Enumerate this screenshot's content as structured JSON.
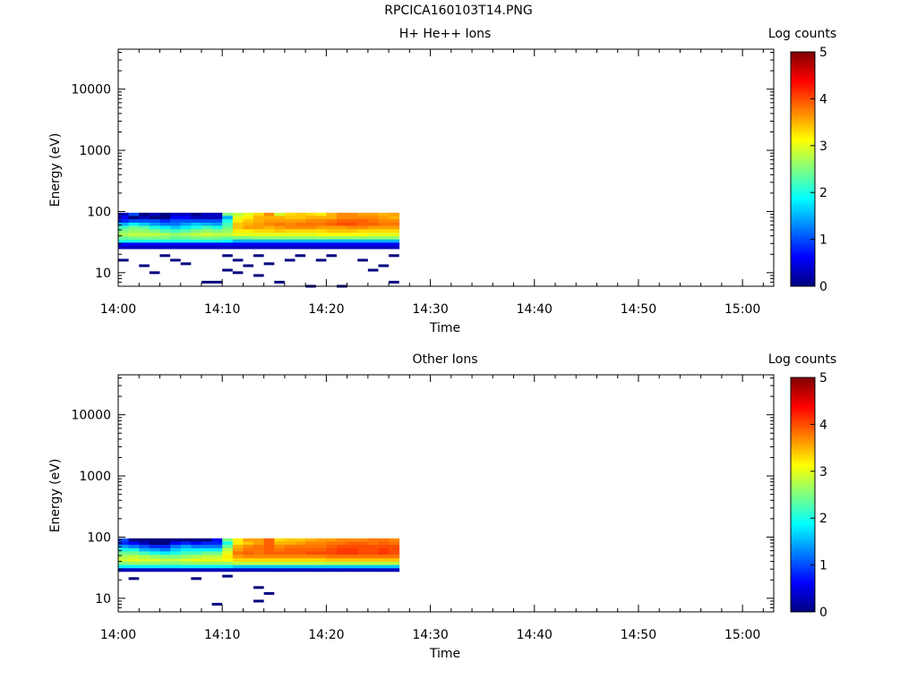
{
  "page_title": "RPCICA160103T14.PNG",
  "panels": [
    {
      "title": "H+ He++ Ions",
      "colorbar_label": "Log counts",
      "xlabel": "Time",
      "ylabel": "Energy (eV)"
    },
    {
      "title": "Other Ions",
      "colorbar_label": "Log counts",
      "xlabel": "Time",
      "ylabel": "Energy (eV)"
    }
  ],
  "colors": {
    "colormap": [
      "#00007f",
      "#0000ff",
      "#007fff",
      "#00ffff",
      "#7fff7f",
      "#ffff00",
      "#ff7f00",
      "#ff0000",
      "#7f0000"
    ]
  },
  "chart_data": [
    {
      "type": "heatmap",
      "title": "H+ He++ Ions",
      "xlabel": "Time",
      "ylabel": "Energy (eV)",
      "colorbar_label": "Log counts",
      "yscale": "log",
      "xlim": [
        "14:00",
        "15:03"
      ],
      "ylim": [
        6,
        45000
      ],
      "x_ticks": [
        "14:00",
        "14:10",
        "14:20",
        "14:30",
        "14:40",
        "14:50",
        "15:00"
      ],
      "y_ticks": [
        "10",
        "100",
        "1000",
        "10000"
      ],
      "color_ticks": [
        "0",
        "1",
        "2",
        "3",
        "4",
        "5"
      ],
      "clim": [
        0,
        5
      ],
      "time_bins": [
        "14:00",
        "14:01",
        "14:02",
        "14:03",
        "14:04",
        "14:05",
        "14:06",
        "14:07",
        "14:08",
        "14:09",
        "14:10",
        "14:11",
        "14:12",
        "14:13",
        "14:14",
        "14:15",
        "14:16",
        "14:17",
        "14:18",
        "14:19",
        "14:20",
        "14:21",
        "14:22",
        "14:23",
        "14:24",
        "14:25",
        "14:26"
      ],
      "energy_bins": [
        90,
        80,
        70,
        62,
        55,
        48,
        42,
        37,
        33,
        29,
        26
      ],
      "values": [
        [
          0.3,
          1.0,
          0.0,
          0.3,
          0.0,
          0.3,
          0.3,
          0.0,
          0.3,
          0.3,
          2.5,
          2.8,
          3.0,
          3.3,
          3.7,
          2.9,
          3.3,
          3.4,
          3.3,
          3.2,
          3.5,
          3.7,
          3.7,
          3.6,
          3.6,
          3.5,
          3.6
        ],
        [
          0.6,
          0.0,
          0.3,
          0.0,
          0.0,
          0.6,
          0.6,
          0.3,
          0.3,
          0.3,
          1.5,
          3.0,
          3.2,
          3.5,
          3.5,
          3.5,
          3.4,
          3.4,
          3.5,
          3.5,
          3.5,
          3.7,
          3.7,
          3.7,
          3.7,
          3.6,
          3.5
        ],
        [
          0.8,
          1.0,
          1.0,
          1.0,
          0.8,
          1.0,
          1.0,
          1.0,
          1.0,
          1.0,
          2.0,
          3.2,
          3.4,
          3.5,
          3.6,
          3.6,
          3.6,
          3.6,
          3.7,
          3.7,
          3.8,
          3.9,
          3.9,
          3.9,
          3.8,
          3.7,
          3.7
        ],
        [
          1.5,
          1.8,
          1.6,
          1.4,
          1.2,
          1.2,
          1.4,
          1.6,
          1.5,
          1.4,
          2.2,
          3.4,
          3.5,
          3.6,
          3.7,
          3.8,
          3.7,
          3.8,
          3.8,
          3.8,
          3.9,
          4.0,
          4.0,
          3.9,
          3.9,
          3.8,
          3.8
        ],
        [
          2.2,
          2.4,
          2.3,
          2.0,
          1.8,
          1.6,
          1.8,
          2.0,
          2.2,
          2.0,
          2.4,
          3.4,
          3.6,
          3.6,
          3.5,
          3.6,
          3.7,
          3.7,
          3.7,
          3.6,
          3.6,
          3.6,
          3.7,
          3.7,
          3.6,
          3.6,
          3.6
        ],
        [
          2.5,
          2.6,
          2.6,
          2.5,
          2.3,
          2.2,
          2.3,
          2.5,
          2.6,
          2.5,
          2.6,
          3.2,
          3.2,
          3.3,
          3.3,
          3.4,
          3.3,
          3.3,
          3.3,
          3.3,
          3.4,
          3.4,
          3.4,
          3.3,
          3.3,
          3.3,
          3.3
        ],
        [
          2.7,
          2.8,
          2.8,
          2.8,
          2.7,
          2.6,
          2.7,
          2.8,
          2.9,
          2.8,
          2.8,
          3.0,
          3.0,
          3.0,
          3.0,
          3.0,
          3.0,
          3.0,
          3.0,
          3.1,
          3.1,
          3.1,
          3.1,
          3.1,
          3.0,
          3.0,
          3.0
        ],
        [
          2.4,
          2.5,
          2.5,
          2.5,
          2.5,
          2.4,
          2.4,
          2.5,
          2.5,
          2.5,
          2.4,
          2.5,
          2.5,
          2.6,
          2.6,
          2.6,
          2.6,
          2.6,
          2.6,
          2.6,
          2.6,
          2.6,
          2.6,
          2.6,
          2.6,
          2.6,
          2.6
        ],
        [
          2.0,
          2.0,
          2.0,
          2.0,
          2.0,
          2.0,
          2.0,
          2.0,
          2.0,
          2.0,
          1.9,
          1.5,
          1.5,
          1.5,
          1.5,
          1.5,
          1.5,
          1.5,
          1.5,
          1.5,
          1.5,
          1.5,
          1.5,
          1.5,
          1.5,
          1.5,
          1.5
        ],
        [
          0.6,
          0.6,
          0.6,
          0.6,
          0.6,
          0.6,
          0.6,
          0.6,
          0.6,
          0.6,
          0.6,
          0.6,
          0.6,
          0.6,
          0.6,
          0.6,
          0.6,
          0.6,
          0.6,
          0.6,
          0.6,
          0.6,
          0.6,
          0.6,
          0.6,
          0.6,
          0.6
        ],
        [
          0.3,
          0.3,
          0.3,
          0.3,
          0.3,
          0.3,
          0.3,
          0.3,
          0.3,
          0.3,
          0.3,
          0.3,
          0.3,
          0.3,
          0.3,
          0.3,
          0.3,
          0.3,
          0.3,
          0.3,
          0.3,
          0.3,
          0.3,
          0.3,
          0.3,
          0.3,
          0.3
        ]
      ],
      "sparse_points": [
        {
          "time": "14:00",
          "energy": 16
        },
        {
          "time": "14:02",
          "energy": 13
        },
        {
          "time": "14:03",
          "energy": 10
        },
        {
          "time": "14:04",
          "energy": 19
        },
        {
          "time": "14:05",
          "energy": 16
        },
        {
          "time": "14:06",
          "energy": 14
        },
        {
          "time": "14:08",
          "energy": 7
        },
        {
          "time": "14:09",
          "energy": 7
        },
        {
          "time": "14:10",
          "energy": 19
        },
        {
          "time": "14:10",
          "energy": 11
        },
        {
          "time": "14:11",
          "energy": 16
        },
        {
          "time": "14:11",
          "energy": 10
        },
        {
          "time": "14:12",
          "energy": 13
        },
        {
          "time": "14:13",
          "energy": 19
        },
        {
          "time": "14:13",
          "energy": 9
        },
        {
          "time": "14:14",
          "energy": 14
        },
        {
          "time": "14:15",
          "energy": 7
        },
        {
          "time": "14:16",
          "energy": 16
        },
        {
          "time": "14:17",
          "energy": 19
        },
        {
          "time": "14:18",
          "energy": 6
        },
        {
          "time": "14:19",
          "energy": 16
        },
        {
          "time": "14:20",
          "energy": 19
        },
        {
          "time": "14:21",
          "energy": 6
        },
        {
          "time": "14:23",
          "energy": 16
        },
        {
          "time": "14:24",
          "energy": 11
        },
        {
          "time": "14:25",
          "energy": 13
        },
        {
          "time": "14:26",
          "energy": 19
        },
        {
          "time": "14:26",
          "energy": 7
        }
      ]
    },
    {
      "type": "heatmap",
      "title": "Other Ions",
      "xlabel": "Time",
      "ylabel": "Energy (eV)",
      "colorbar_label": "Log counts",
      "yscale": "log",
      "xlim": [
        "14:00",
        "15:03"
      ],
      "ylim": [
        6,
        45000
      ],
      "x_ticks": [
        "14:00",
        "14:10",
        "14:20",
        "14:30",
        "14:40",
        "14:50",
        "15:00"
      ],
      "y_ticks": [
        "10",
        "100",
        "1000",
        "10000"
      ],
      "color_ticks": [
        "0",
        "1",
        "2",
        "3",
        "4",
        "5"
      ],
      "clim": [
        0,
        5
      ],
      "time_bins": [
        "14:00",
        "14:01",
        "14:02",
        "14:03",
        "14:04",
        "14:05",
        "14:06",
        "14:07",
        "14:08",
        "14:09",
        "14:10",
        "14:11",
        "14:12",
        "14:13",
        "14:14",
        "14:15",
        "14:16",
        "14:17",
        "14:18",
        "14:19",
        "14:20",
        "14:21",
        "14:22",
        "14:23",
        "14:24",
        "14:25",
        "14:26"
      ],
      "energy_bins": [
        90,
        80,
        70,
        62,
        55,
        48,
        42,
        37,
        33,
        29,
        26
      ],
      "values": [
        [
          1.0,
          0.0,
          0.0,
          0.0,
          0.0,
          0.0,
          0.0,
          0.0,
          0.0,
          0.6,
          2.5,
          3.2,
          3.6,
          3.6,
          3.9,
          3.3,
          3.4,
          3.4,
          3.5,
          3.6,
          3.6,
          3.7,
          3.7,
          3.7,
          3.8,
          3.8,
          3.7
        ],
        [
          0.8,
          0.6,
          0.3,
          0.0,
          0.0,
          0.6,
          0.8,
          0.6,
          0.8,
          0.8,
          2.0,
          3.2,
          3.4,
          3.6,
          3.9,
          3.5,
          3.5,
          3.6,
          3.7,
          3.7,
          3.8,
          3.8,
          3.9,
          3.9,
          3.8,
          3.9,
          3.8
        ],
        [
          1.4,
          1.2,
          1.0,
          0.8,
          0.8,
          1.2,
          1.4,
          1.2,
          1.2,
          1.2,
          2.4,
          3.5,
          3.7,
          3.8,
          3.9,
          3.7,
          3.8,
          3.8,
          3.8,
          3.8,
          3.9,
          4.0,
          4.0,
          4.0,
          4.0,
          4.0,
          4.0
        ],
        [
          2.0,
          2.0,
          1.5,
          1.4,
          1.2,
          1.6,
          1.8,
          1.8,
          1.8,
          1.8,
          2.8,
          3.6,
          3.8,
          3.8,
          3.9,
          3.8,
          3.9,
          3.9,
          3.9,
          3.9,
          4.0,
          4.1,
          4.1,
          4.0,
          4.0,
          4.1,
          4.0
        ],
        [
          2.4,
          2.4,
          2.2,
          2.0,
          1.8,
          2.0,
          2.2,
          2.2,
          2.4,
          2.4,
          3.0,
          3.8,
          3.9,
          3.8,
          3.9,
          3.9,
          3.9,
          3.9,
          4.0,
          4.0,
          4.0,
          4.1,
          4.1,
          4.0,
          4.0,
          4.1,
          4.0
        ],
        [
          2.7,
          2.8,
          2.7,
          2.6,
          2.5,
          2.5,
          2.6,
          2.7,
          2.8,
          2.8,
          3.2,
          3.6,
          3.7,
          3.7,
          3.7,
          3.7,
          3.7,
          3.7,
          3.7,
          3.7,
          3.8,
          3.8,
          3.8,
          3.8,
          3.8,
          3.8,
          3.8
        ],
        [
          2.9,
          3.0,
          2.9,
          2.9,
          2.8,
          2.8,
          2.9,
          3.0,
          3.0,
          3.0,
          3.1,
          3.3,
          3.3,
          3.3,
          3.3,
          3.3,
          3.3,
          3.3,
          3.3,
          3.3,
          3.4,
          3.4,
          3.4,
          3.4,
          3.4,
          3.4,
          3.4
        ],
        [
          2.5,
          2.6,
          2.6,
          2.6,
          2.5,
          2.5,
          2.6,
          2.6,
          2.6,
          2.6,
          2.6,
          2.8,
          2.8,
          2.8,
          2.8,
          2.8,
          2.8,
          2.8,
          2.8,
          2.8,
          2.8,
          2.8,
          2.8,
          2.8,
          2.8,
          2.8,
          2.8
        ],
        [
          1.8,
          1.8,
          1.8,
          1.8,
          1.8,
          1.8,
          1.8,
          1.8,
          1.8,
          1.8,
          1.8,
          1.6,
          1.6,
          1.6,
          1.6,
          1.6,
          1.6,
          1.6,
          1.6,
          1.6,
          1.6,
          1.6,
          1.6,
          1.6,
          1.6,
          1.6,
          1.6
        ],
        [
          0.3,
          0.3,
          0.3,
          0.3,
          0.3,
          0.3,
          0.3,
          0.3,
          0.3,
          0.3,
          0.3,
          0.3,
          0.3,
          0.3,
          0.3,
          0.3,
          0.3,
          0.3,
          0.3,
          0.3,
          0.3,
          0.3,
          0.3,
          0.3,
          0.3,
          0.3,
          0.3
        ],
        [
          -1,
          -1,
          -1,
          -1,
          -1,
          -1,
          -1,
          -1,
          -1,
          -1,
          -1,
          -1,
          -1,
          -1,
          -1,
          -1,
          -1,
          -1,
          -1,
          -1,
          -1,
          -1,
          -1,
          -1,
          -1,
          -1,
          -1
        ]
      ],
      "sparse_points": [
        {
          "time": "14:01",
          "energy": 21
        },
        {
          "time": "14:07",
          "energy": 21
        },
        {
          "time": "14:09",
          "energy": 8
        },
        {
          "time": "14:10",
          "energy": 23
        },
        {
          "time": "14:13",
          "energy": 15
        },
        {
          "time": "14:13",
          "energy": 9
        },
        {
          "time": "14:14",
          "energy": 12
        }
      ]
    }
  ]
}
